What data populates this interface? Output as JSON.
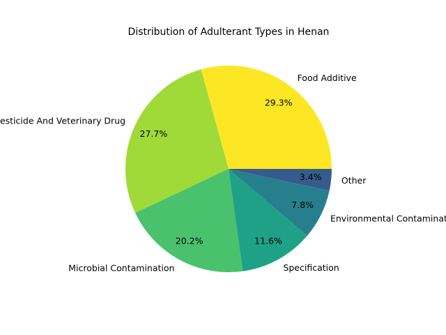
{
  "chart_data": {
    "type": "pie",
    "title": "Distribution of Adulterant Types in Henan",
    "labels": [
      "Food Additive",
      "Pesticide And Veterinary Drug",
      "Microbial Contamination",
      "Specification",
      "Environmental Contamination",
      "Other"
    ],
    "values": [
      29.3,
      27.7,
      20.2,
      11.6,
      7.8,
      3.4
    ],
    "pct_labels": [
      "29.3%",
      "27.7%",
      "20.2%",
      "11.6%",
      "7.8%",
      "3.4%"
    ],
    "colors": [
      "#fde725",
      "#a0da39",
      "#4ac16d",
      "#1fa187",
      "#277f8e",
      "#365c8d"
    ],
    "start_angle_deg": 0,
    "direction": "counterclockwise",
    "legend": "none"
  }
}
